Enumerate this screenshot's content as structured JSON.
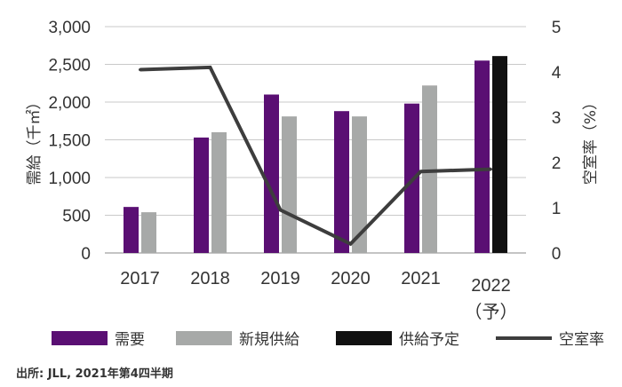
{
  "chart_data": {
    "type": "bar",
    "categories": [
      "2017",
      "2018",
      "2019",
      "2020",
      "2021",
      "2022"
    ],
    "category_sub_labels": [
      "",
      "",
      "",
      "",
      "",
      "（予）"
    ],
    "series": [
      {
        "name": "需要",
        "kind": "bar",
        "axis": "left",
        "color": "#5a0f73",
        "values": [
          610,
          1530,
          2100,
          1880,
          1980,
          2550
        ]
      },
      {
        "name": "新規供給",
        "kind": "bar",
        "axis": "left",
        "color": "#a7a9a8",
        "values": [
          540,
          1600,
          1810,
          1810,
          2220,
          null
        ]
      },
      {
        "name": "供給予定",
        "kind": "bar",
        "axis": "left",
        "color": "#111111",
        "values": [
          null,
          null,
          null,
          null,
          null,
          2610
        ]
      },
      {
        "name": "空室率",
        "kind": "line",
        "axis": "right",
        "color": "#3d3d3d",
        "values": [
          4.05,
          4.1,
          0.95,
          0.2,
          1.8,
          1.85
        ]
      }
    ],
    "ylabel_left": "需給（千㎡）",
    "ylabel_right": "空室率（%）",
    "ylim_left": [
      0,
      3000
    ],
    "yticks_left": [
      "0",
      "500",
      "1,000",
      "1,500",
      "2,000",
      "2,500",
      "3,000"
    ],
    "ylim_right": [
      0,
      5
    ],
    "yticks_right": [
      "0",
      "1",
      "2",
      "3",
      "4",
      "5"
    ],
    "grid": true,
    "legend_position": "bottom"
  },
  "source": "出所: JLL, 2021年第4四半期"
}
